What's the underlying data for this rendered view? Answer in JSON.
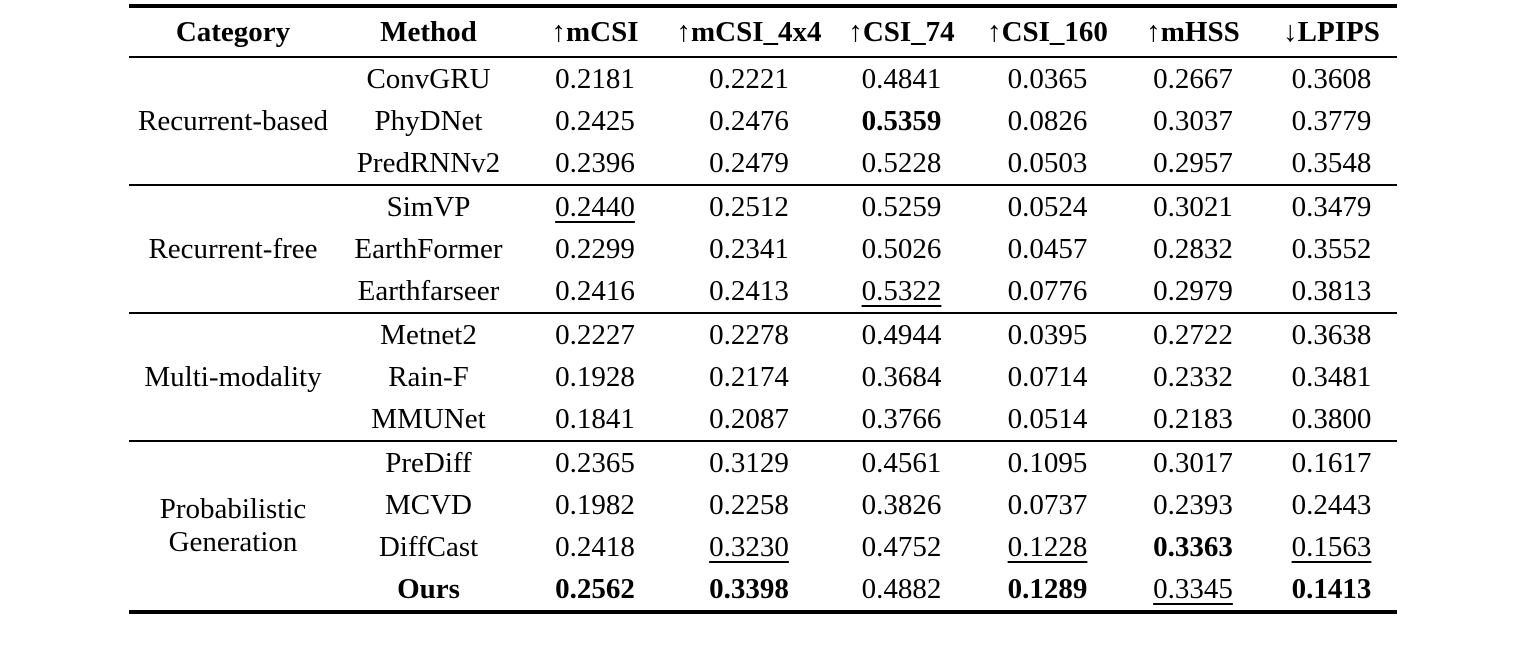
{
  "table": {
    "columns": [
      {
        "label": "Category"
      },
      {
        "label": "Method"
      },
      {
        "label": "↑mCSI"
      },
      {
        "label": "↑mCSI_4x4"
      },
      {
        "label": "↑CSI_74"
      },
      {
        "label": "↑CSI_160"
      },
      {
        "label": "↑mHSS"
      },
      {
        "label": "↓LPIPS"
      }
    ],
    "groups": [
      {
        "category": "Recurrent-based",
        "rows": [
          {
            "method": "ConvGRU",
            "bold": false,
            "values": [
              {
                "t": "0.2181",
                "s": ""
              },
              {
                "t": "0.2221",
                "s": ""
              },
              {
                "t": "0.4841",
                "s": ""
              },
              {
                "t": "0.0365",
                "s": ""
              },
              {
                "t": "0.2667",
                "s": ""
              },
              {
                "t": "0.3608",
                "s": ""
              }
            ]
          },
          {
            "method": "PhyDNet",
            "bold": false,
            "values": [
              {
                "t": "0.2425",
                "s": ""
              },
              {
                "t": "0.2476",
                "s": ""
              },
              {
                "t": "0.5359",
                "s": "b"
              },
              {
                "t": "0.0826",
                "s": ""
              },
              {
                "t": "0.3037",
                "s": ""
              },
              {
                "t": "0.3779",
                "s": ""
              }
            ]
          },
          {
            "method": "PredRNNv2",
            "bold": false,
            "values": [
              {
                "t": "0.2396",
                "s": ""
              },
              {
                "t": "0.2479",
                "s": ""
              },
              {
                "t": "0.5228",
                "s": ""
              },
              {
                "t": "0.0503",
                "s": ""
              },
              {
                "t": "0.2957",
                "s": ""
              },
              {
                "t": "0.3548",
                "s": ""
              }
            ]
          }
        ]
      },
      {
        "category": "Recurrent-free",
        "rows": [
          {
            "method": "SimVP",
            "bold": false,
            "values": [
              {
                "t": "0.2440",
                "s": "u"
              },
              {
                "t": "0.2512",
                "s": ""
              },
              {
                "t": "0.5259",
                "s": ""
              },
              {
                "t": "0.0524",
                "s": ""
              },
              {
                "t": "0.3021",
                "s": ""
              },
              {
                "t": "0.3479",
                "s": ""
              }
            ]
          },
          {
            "method": "EarthFormer",
            "bold": false,
            "values": [
              {
                "t": "0.2299",
                "s": ""
              },
              {
                "t": "0.2341",
                "s": ""
              },
              {
                "t": "0.5026",
                "s": ""
              },
              {
                "t": "0.0457",
                "s": ""
              },
              {
                "t": "0.2832",
                "s": ""
              },
              {
                "t": "0.3552",
                "s": ""
              }
            ]
          },
          {
            "method": "Earthfarseer",
            "bold": false,
            "values": [
              {
                "t": "0.2416",
                "s": ""
              },
              {
                "t": "0.2413",
                "s": ""
              },
              {
                "t": "0.5322",
                "s": "u"
              },
              {
                "t": "0.0776",
                "s": ""
              },
              {
                "t": "0.2979",
                "s": ""
              },
              {
                "t": "0.3813",
                "s": ""
              }
            ]
          }
        ]
      },
      {
        "category": "Multi-modality",
        "rows": [
          {
            "method": "Metnet2",
            "bold": false,
            "values": [
              {
                "t": "0.2227",
                "s": ""
              },
              {
                "t": "0.2278",
                "s": ""
              },
              {
                "t": "0.4944",
                "s": ""
              },
              {
                "t": "0.0395",
                "s": ""
              },
              {
                "t": "0.2722",
                "s": ""
              },
              {
                "t": "0.3638",
                "s": ""
              }
            ]
          },
          {
            "method": "Rain-F",
            "bold": false,
            "values": [
              {
                "t": "0.1928",
                "s": ""
              },
              {
                "t": "0.2174",
                "s": ""
              },
              {
                "t": "0.3684",
                "s": ""
              },
              {
                "t": "0.0714",
                "s": ""
              },
              {
                "t": "0.2332",
                "s": ""
              },
              {
                "t": "0.3481",
                "s": ""
              }
            ]
          },
          {
            "method": "MMUNet",
            "bold": false,
            "values": [
              {
                "t": "0.1841",
                "s": ""
              },
              {
                "t": "0.2087",
                "s": ""
              },
              {
                "t": "0.3766",
                "s": ""
              },
              {
                "t": "0.0514",
                "s": ""
              },
              {
                "t": "0.2183",
                "s": ""
              },
              {
                "t": "0.3800",
                "s": ""
              }
            ]
          }
        ]
      },
      {
        "category": "Probabilistic Generation",
        "rows": [
          {
            "method": "PreDiff",
            "bold": false,
            "values": [
              {
                "t": "0.2365",
                "s": ""
              },
              {
                "t": "0.3129",
                "s": ""
              },
              {
                "t": "0.4561",
                "s": ""
              },
              {
                "t": "0.1095",
                "s": ""
              },
              {
                "t": "0.3017",
                "s": ""
              },
              {
                "t": "0.1617",
                "s": ""
              }
            ]
          },
          {
            "method": "MCVD",
            "bold": false,
            "values": [
              {
                "t": "0.1982",
                "s": ""
              },
              {
                "t": "0.2258",
                "s": ""
              },
              {
                "t": "0.3826",
                "s": ""
              },
              {
                "t": "0.0737",
                "s": ""
              },
              {
                "t": "0.2393",
                "s": ""
              },
              {
                "t": "0.2443",
                "s": ""
              }
            ]
          },
          {
            "method": "DiffCast",
            "bold": false,
            "values": [
              {
                "t": "0.2418",
                "s": ""
              },
              {
                "t": "0.3230",
                "s": "u"
              },
              {
                "t": "0.4752",
                "s": ""
              },
              {
                "t": "0.1228",
                "s": "u"
              },
              {
                "t": "0.3363",
                "s": "b"
              },
              {
                "t": "0.1563",
                "s": "u"
              }
            ]
          },
          {
            "method": "Ours",
            "bold": true,
            "values": [
              {
                "t": "0.2562",
                "s": "b"
              },
              {
                "t": "0.3398",
                "s": "b"
              },
              {
                "t": "0.4882",
                "s": ""
              },
              {
                "t": "0.1289",
                "s": "b"
              },
              {
                "t": "0.3345",
                "s": "u"
              },
              {
                "t": "0.1413",
                "s": "b"
              }
            ]
          }
        ]
      }
    ]
  }
}
